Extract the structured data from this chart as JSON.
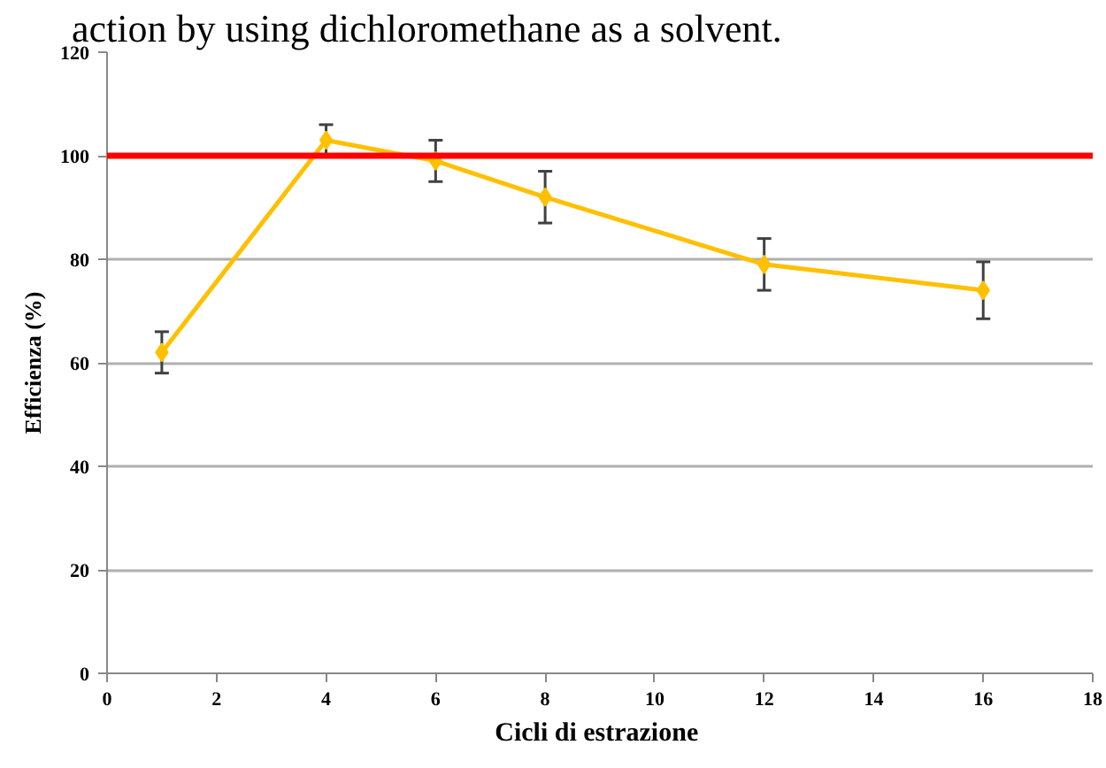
{
  "chart_data": {
    "type": "line",
    "xlabel": "Cicli  di estrazione",
    "ylabel": "Efficienza (%)",
    "annotations": [
      "action by using dichloromethane as a solvent."
    ],
    "x": [
      1,
      4,
      6,
      8,
      12,
      16
    ],
    "series": [
      {
        "color": "#ffc000",
        "values": [
          62,
          103,
          99,
          92,
          79,
          74
        ],
        "errors": [
          4,
          3,
          4,
          5,
          5,
          5.5
        ]
      }
    ],
    "xlim": [
      0,
      18
    ],
    "xticks": [
      0,
      2,
      4,
      6,
      8,
      10,
      12,
      14,
      16,
      18
    ],
    "ylim": [
      0,
      120
    ],
    "yticks": [
      0,
      20,
      40,
      60,
      80,
      100,
      120
    ],
    "ref_lines": [
      {
        "axis": "y",
        "value": 100,
        "color": "#ff0000"
      }
    ],
    "grid": "y",
    "marker": "diamond",
    "line_style": "solid"
  }
}
